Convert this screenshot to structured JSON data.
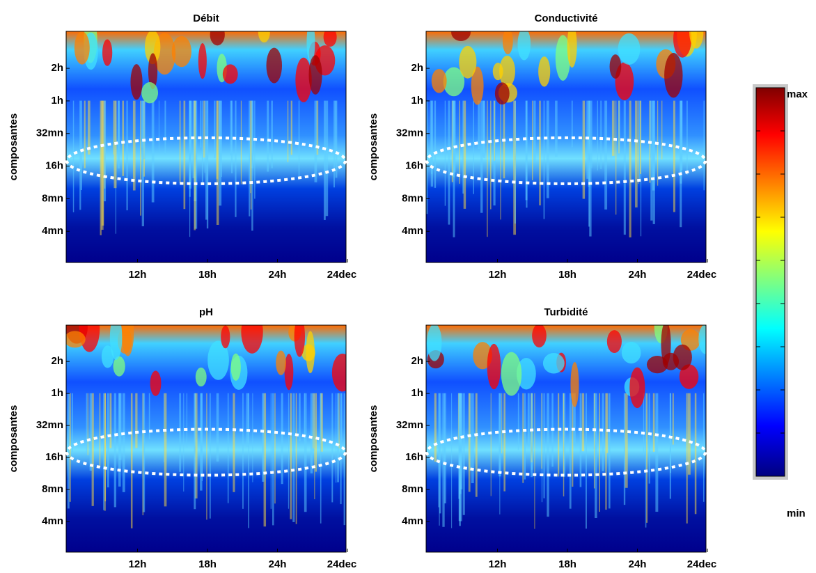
{
  "chart_data": [
    {
      "type": "heatmap",
      "title": "Débit",
      "y_label": "composantes",
      "x_labels": [
        "12h",
        "18h",
        "24h",
        "24dec"
      ],
      "y_labels": [
        "2h",
        "1h",
        "32mn",
        "16h",
        "8mn",
        "4mn"
      ]
    },
    {
      "type": "heatmap",
      "title": "Conductivité",
      "y_label": "composantes",
      "x_labels": [
        "12h",
        "18h",
        "24h",
        "24dec"
      ],
      "y_labels": [
        "2h",
        "1h",
        "32mn",
        "16h",
        "8mn",
        "4mn"
      ]
    },
    {
      "type": "heatmap",
      "title": "pH",
      "y_label": "composantes",
      "x_labels": [
        "12h",
        "18h",
        "24h",
        "24dec"
      ],
      "y_labels": [
        "2h",
        "1h",
        "32mn",
        "16h",
        "8mn",
        "4mn"
      ]
    },
    {
      "type": "heatmap",
      "title": "Turbidité",
      "y_label": "composantes",
      "x_labels": [
        "12h",
        "18h",
        "24h",
        "24dec"
      ],
      "y_labels": [
        "2h",
        "1h",
        "32mn",
        "16h",
        "8mn",
        "4mn"
      ]
    }
  ],
  "colorbar": {
    "max_label": "max",
    "min_label": "min"
  }
}
